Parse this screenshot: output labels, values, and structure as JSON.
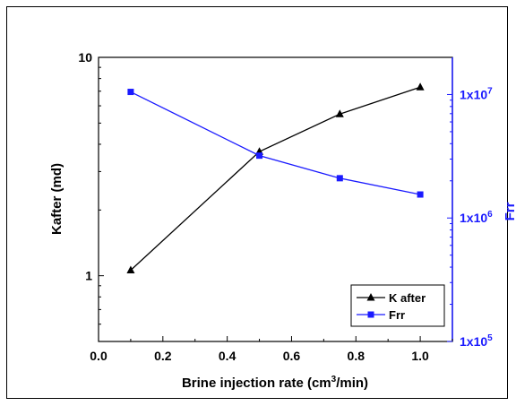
{
  "chart_data": {
    "type": "line",
    "xlabel": "Brine injection rate (cm",
    "xlabel_sup": "3",
    "xlabel_suffix": "/min)",
    "ylabel_left": "Kafter (md)",
    "ylabel_right": "Frr",
    "x": [
      0.1,
      0.5,
      0.75,
      1.0
    ],
    "xlim": [
      0.0,
      1.1
    ],
    "xticks": [
      0.0,
      0.2,
      0.4,
      0.6,
      0.8,
      1.0
    ],
    "xtick_labels": [
      "0.0",
      "0.2",
      "0.4",
      "0.6",
      "0.8",
      "1.0"
    ],
    "ylim_left": [
      0.5,
      10
    ],
    "yscale_left": "log",
    "yticks_left": [
      1,
      10
    ],
    "ytick_labels_left": [
      "1",
      "10"
    ],
    "ylim_right": [
      100000,
      20000000
    ],
    "yscale_right": "log",
    "yticks_right": [
      100000,
      1000000,
      10000000
    ],
    "ytick_labels_right": [
      {
        "base": "1x10",
        "exp": "5"
      },
      {
        "base": "1x10",
        "exp": "6"
      },
      {
        "base": "1x10",
        "exp": "7"
      }
    ],
    "grid": false,
    "legend_position": "lower-right",
    "series": [
      {
        "name": "K after",
        "axis": "left",
        "color": "#000000",
        "marker": "triangle",
        "values": [
          1.06,
          3.7,
          5.5,
          7.3
        ]
      },
      {
        "name": "Frr",
        "axis": "right",
        "color": "#1a1aff",
        "marker": "square",
        "values": [
          10500000,
          3200000,
          2100000,
          1550000
        ]
      }
    ]
  }
}
